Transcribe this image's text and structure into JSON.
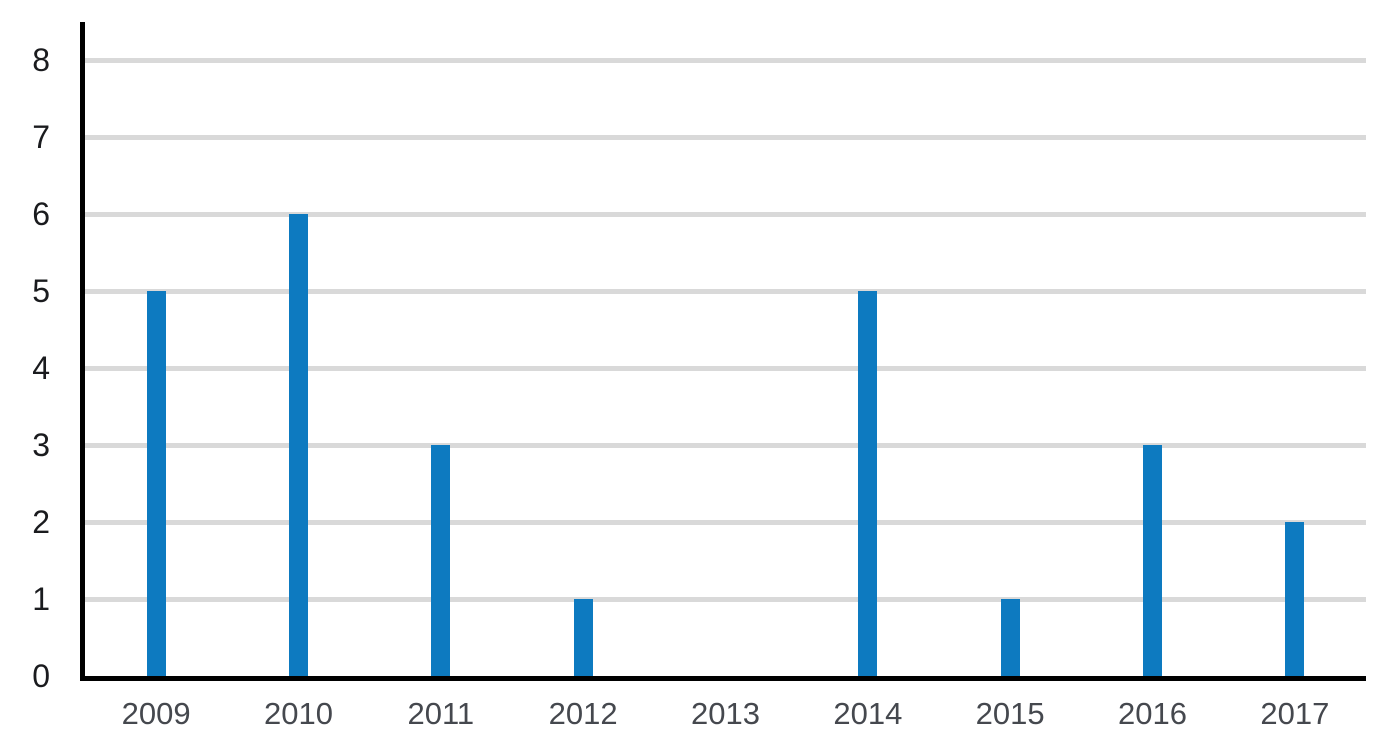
{
  "chart_data": {
    "type": "bar",
    "title": "",
    "xlabel": "",
    "ylabel": "",
    "categories": [
      "2009",
      "2010",
      "2011",
      "2012",
      "2013",
      "2014",
      "2015",
      "2016",
      "2017"
    ],
    "values": [
      5,
      6,
      3,
      1,
      0,
      5,
      1,
      3,
      2
    ],
    "yticks": [
      0,
      1,
      2,
      3,
      4,
      5,
      6,
      7,
      8
    ],
    "ylim": [
      0,
      8.5
    ],
    "grid": "horizontal",
    "legend_position": "none",
    "colors": {
      "bar": "#0d7ac0",
      "gridline": "#d9d9d9",
      "axis": "#000000",
      "y_tick_label": "#1a1b1e",
      "x_tick_label": "#45484e",
      "background": "#ffffff"
    }
  }
}
